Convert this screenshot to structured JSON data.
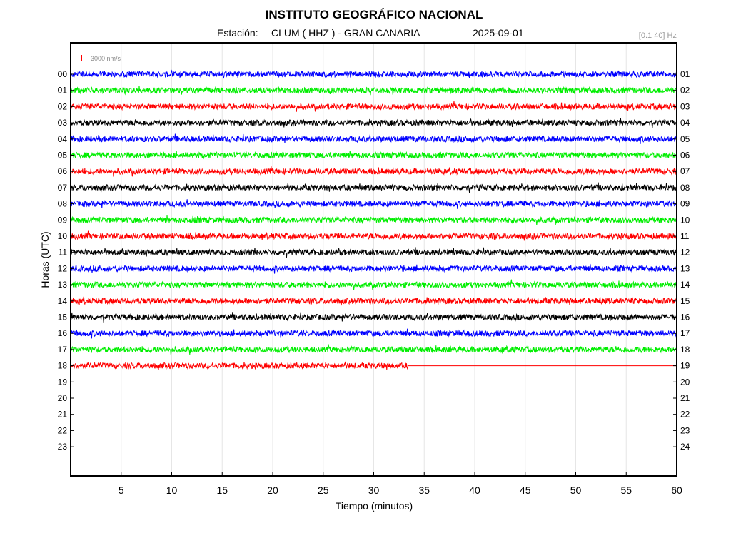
{
  "header": {
    "title": "INSTITUTO GEOGRÁFICO NACIONAL",
    "station_label": "Estación:",
    "station": "CLUM ( HHZ ) - GRAN CANARIA",
    "date": "2025-09-01",
    "filter": "[0.1 40] Hz"
  },
  "chart_data": {
    "type": "line",
    "title": "INSTITUTO GEOGRÁFICO NACIONAL",
    "xlabel": "Tiempo (minutos)",
    "ylabel": "Horas (UTC)",
    "xlim": [
      0,
      60
    ],
    "x_ticks": [
      "5",
      "10",
      "15",
      "20",
      "25",
      "30",
      "35",
      "40",
      "45",
      "50",
      "55",
      "60"
    ],
    "left_ticks": [
      "00",
      "01",
      "02",
      "03",
      "04",
      "05",
      "06",
      "07",
      "08",
      "09",
      "10",
      "11",
      "12",
      "13",
      "14",
      "15",
      "16",
      "17",
      "18",
      "19",
      "20",
      "21",
      "22",
      "23"
    ],
    "right_ticks": [
      "01",
      "02",
      "03",
      "04",
      "05",
      "06",
      "07",
      "08",
      "09",
      "10",
      "11",
      "12",
      "13",
      "14",
      "15",
      "16",
      "17",
      "18",
      "19",
      "20",
      "21",
      "22",
      "23",
      "24"
    ],
    "scale_label": "3000 nm/s",
    "grid": "vertical",
    "colors": [
      "#0000ff",
      "#00ee00",
      "#ff0000",
      "#000000"
    ],
    "series": [
      {
        "hour": "00",
        "color": "#0000ff",
        "end_minute": 60
      },
      {
        "hour": "01",
        "color": "#00ee00",
        "end_minute": 60
      },
      {
        "hour": "02",
        "color": "#ff0000",
        "end_minute": 60
      },
      {
        "hour": "03",
        "color": "#000000",
        "end_minute": 60
      },
      {
        "hour": "04",
        "color": "#0000ff",
        "end_minute": 60
      },
      {
        "hour": "05",
        "color": "#00ee00",
        "end_minute": 60
      },
      {
        "hour": "06",
        "color": "#ff0000",
        "end_minute": 60
      },
      {
        "hour": "07",
        "color": "#000000",
        "end_minute": 60
      },
      {
        "hour": "08",
        "color": "#0000ff",
        "end_minute": 60
      },
      {
        "hour": "09",
        "color": "#00ee00",
        "end_minute": 60
      },
      {
        "hour": "10",
        "color": "#ff0000",
        "end_minute": 60
      },
      {
        "hour": "11",
        "color": "#000000",
        "end_minute": 60
      },
      {
        "hour": "12",
        "color": "#0000ff",
        "end_minute": 60
      },
      {
        "hour": "13",
        "color": "#00ee00",
        "end_minute": 60
      },
      {
        "hour": "14",
        "color": "#ff0000",
        "end_minute": 60
      },
      {
        "hour": "15",
        "color": "#000000",
        "end_minute": 60
      },
      {
        "hour": "16",
        "color": "#0000ff",
        "end_minute": 60
      },
      {
        "hour": "17",
        "color": "#00ee00",
        "end_minute": 60
      },
      {
        "hour": "18",
        "color": "#ff0000",
        "end_minute": 33.4
      }
    ]
  }
}
